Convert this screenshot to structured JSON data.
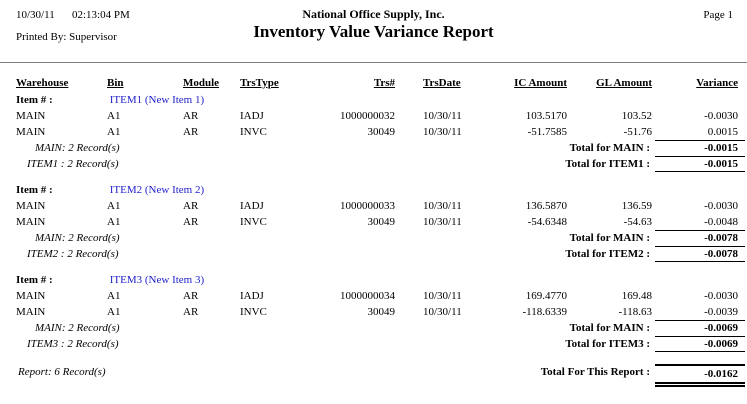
{
  "header": {
    "date": "10/30/11",
    "time": "02:13:04 PM",
    "printed_by": "Printed By: Supervisor",
    "company": "National Office Supply, Inc.",
    "title": "Inventory Value Variance Report",
    "page": "Page 1"
  },
  "columns": {
    "warehouse": "Warehouse",
    "bin": "Bin",
    "module": "Module",
    "trstype": "TrsType",
    "trsnum": "Trs#",
    "trsdate": "TrsDate",
    "ic_amount": "IC Amount",
    "gl_amount": "GL Amount",
    "variance": "Variance"
  },
  "item_label": "Item # :",
  "sections": [
    {
      "item_code": "ITEM1 (New Item 1)",
      "rows": [
        {
          "warehouse": "MAIN",
          "bin": "A1",
          "module": "AR",
          "trstype": "IADJ",
          "trsnum": "1000000032",
          "trsdate": "10/30/11",
          "ic_amount": "103.5170",
          "gl_amount": "103.52",
          "variance": "-0.0030"
        },
        {
          "warehouse": "MAIN",
          "bin": "A1",
          "module": "AR",
          "trstype": "INVC",
          "trsnum": "30049",
          "trsdate": "10/30/11",
          "ic_amount": "-51.7585",
          "gl_amount": "-51.76",
          "variance": "0.0015"
        }
      ],
      "warehouse_count": "MAIN: 2 Record(s)",
      "warehouse_total_label": "Total for MAIN :",
      "warehouse_total": "-0.0015",
      "item_count": "ITEM1 : 2 Record(s)",
      "item_total_label": "Total for ITEM1 :",
      "item_total": "-0.0015"
    },
    {
      "item_code": "ITEM2 (New Item 2)",
      "rows": [
        {
          "warehouse": "MAIN",
          "bin": "A1",
          "module": "AR",
          "trstype": "IADJ",
          "trsnum": "1000000033",
          "trsdate": "10/30/11",
          "ic_amount": "136.5870",
          "gl_amount": "136.59",
          "variance": "-0.0030"
        },
        {
          "warehouse": "MAIN",
          "bin": "A1",
          "module": "AR",
          "trstype": "INVC",
          "trsnum": "30049",
          "trsdate": "10/30/11",
          "ic_amount": "-54.6348",
          "gl_amount": "-54.63",
          "variance": "-0.0048"
        }
      ],
      "warehouse_count": "MAIN: 2 Record(s)",
      "warehouse_total_label": "Total for MAIN :",
      "warehouse_total": "-0.0078",
      "item_count": "ITEM2 : 2 Record(s)",
      "item_total_label": "Total for ITEM2 :",
      "item_total": "-0.0078"
    },
    {
      "item_code": "ITEM3 (New Item 3)",
      "rows": [
        {
          "warehouse": "MAIN",
          "bin": "A1",
          "module": "AR",
          "trstype": "IADJ",
          "trsnum": "1000000034",
          "trsdate": "10/30/11",
          "ic_amount": "169.4770",
          "gl_amount": "169.48",
          "variance": "-0.0030"
        },
        {
          "warehouse": "MAIN",
          "bin": "A1",
          "module": "AR",
          "trstype": "INVC",
          "trsnum": "30049",
          "trsdate": "10/30/11",
          "ic_amount": "-118.6339",
          "gl_amount": "-118.63",
          "variance": "-0.0039"
        }
      ],
      "warehouse_count": "MAIN: 2 Record(s)",
      "warehouse_total_label": "Total for MAIN :",
      "warehouse_total": "-0.0069",
      "item_count": "ITEM3 : 2 Record(s)",
      "item_total_label": "Total for ITEM3 :",
      "item_total": "-0.0069"
    }
  ],
  "footer": {
    "report_count": "Report: 6 Record(s)",
    "report_total_label": "Total For This Report :",
    "report_total": "-0.0162"
  },
  "colors": {
    "item_blue": "#2222CC",
    "separator_gray": "#7F7F7F",
    "text": "#000000",
    "background": "#FFFFFF"
  }
}
